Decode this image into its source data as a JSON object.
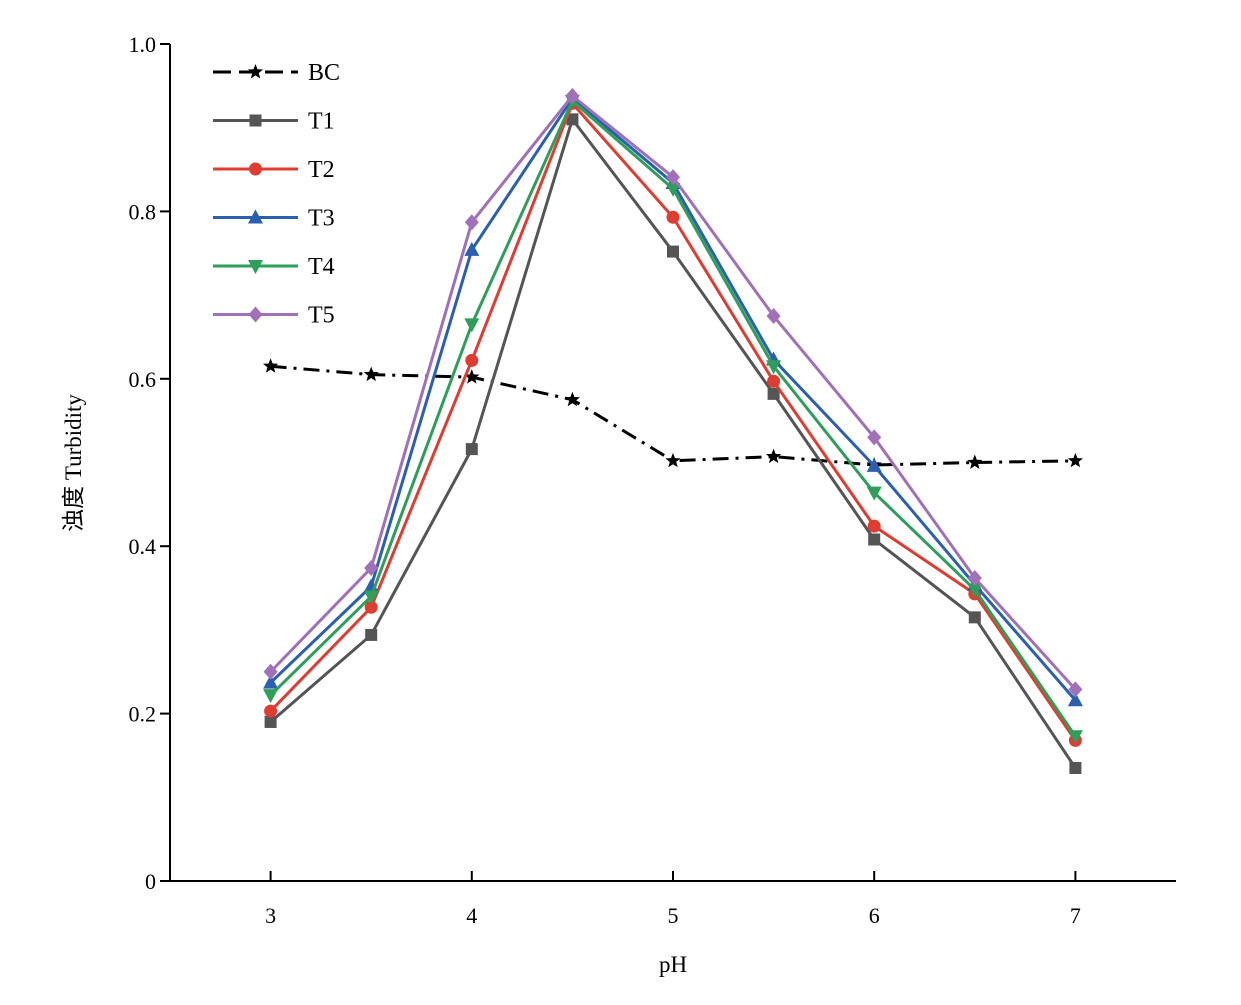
{
  "chart_data": {
    "type": "line",
    "xlabel": "pH",
    "ylabel": "浊度 Turbidity",
    "xlim": [
      2.5,
      7.5
    ],
    "ylim": [
      0,
      1.0
    ],
    "xticks": [
      3,
      4,
      5,
      6,
      7
    ],
    "xtick_labels": [
      "3",
      "4",
      "5",
      "6",
      "7"
    ],
    "yticks": [
      0,
      0.2,
      0.4,
      0.6,
      0.8,
      1.0
    ],
    "ytick_labels": [
      "0",
      "0.2",
      "0.4",
      "0.6",
      "0.8",
      "1.0"
    ],
    "grid": false,
    "legend_position": "top-left",
    "x": [
      3,
      3.5,
      4,
      4.5,
      5,
      5.5,
      6,
      6.5,
      7
    ],
    "series": [
      {
        "name": "BC",
        "color": "#000000",
        "marker": "star",
        "dash": "dashdot",
        "values": [
          0.615,
          0.605,
          0.602,
          0.575,
          0.502,
          0.507,
          0.497,
          0.5,
          0.502
        ]
      },
      {
        "name": "T1",
        "color": "#555555",
        "marker": "square",
        "dash": "solid",
        "values": [
          0.19,
          0.294,
          0.516,
          0.91,
          0.752,
          0.582,
          0.408,
          0.315,
          0.135
        ]
      },
      {
        "name": "T2",
        "color": "#e03c31",
        "marker": "circle",
        "dash": "solid",
        "values": [
          0.203,
          0.327,
          0.622,
          0.929,
          0.793,
          0.597,
          0.424,
          0.343,
          0.168
        ]
      },
      {
        "name": "T3",
        "color": "#2b5fb0",
        "marker": "triangle-up",
        "dash": "solid",
        "values": [
          0.237,
          0.352,
          0.754,
          0.935,
          0.834,
          0.623,
          0.496,
          0.354,
          0.216
        ]
      },
      {
        "name": "T4",
        "color": "#2e9e5b",
        "marker": "triangle-down",
        "dash": "solid",
        "values": [
          0.222,
          0.34,
          0.665,
          0.932,
          0.827,
          0.615,
          0.464,
          0.348,
          0.173
        ]
      },
      {
        "name": "T5",
        "color": "#a070b8",
        "marker": "diamond",
        "dash": "solid",
        "values": [
          0.25,
          0.374,
          0.787,
          0.938,
          0.841,
          0.675,
          0.53,
          0.362,
          0.229
        ]
      }
    ]
  }
}
